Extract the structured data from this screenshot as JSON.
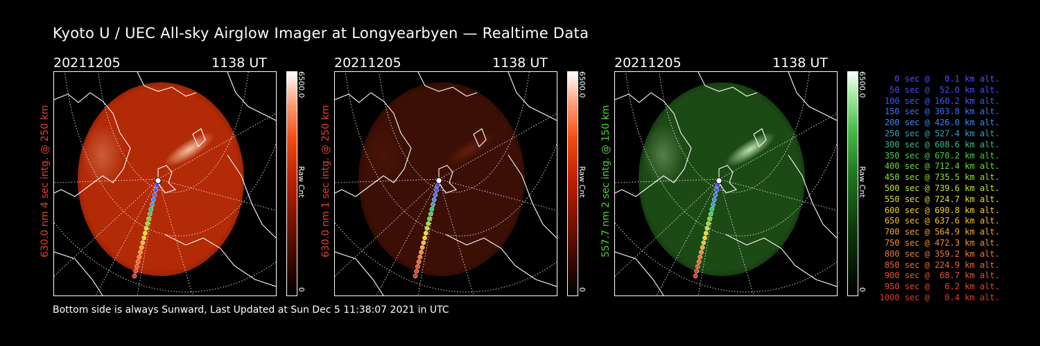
{
  "title": "Kyoto U / UEC All-sky Airglow Imager at Longyearbyen — Realtime Data",
  "footer": "Bottom side is always Sunward, Last Updated at Sun Dec  5 11:38:07 2021 in UTC",
  "colors": {
    "red_label": "#e8412a",
    "green_label": "#4cd43a"
  },
  "panels": [
    {
      "date": "20211205",
      "time": "1138 UT",
      "ylabel": "630.0 nm 4 sec intg. @ 250 km",
      "cbar_max": "6500.0",
      "cbar_min": "0",
      "cbar_unit": "Raw Cnt",
      "tone": "red-bright"
    },
    {
      "date": "20211205",
      "time": "1138 UT",
      "ylabel": "630.0 nm 1 sec intg. @ 250 km",
      "cbar_max": "6500.0",
      "cbar_min": "0",
      "cbar_unit": "Raw Cnt",
      "tone": "red-dim"
    },
    {
      "date": "20211205",
      "time": "1138 UT",
      "ylabel": "557.7 nm 2 sec intg. @ 150 km",
      "cbar_max": "6500.0",
      "cbar_min": "0",
      "cbar_unit": "Raw Cnt",
      "tone": "green"
    }
  ],
  "legend": [
    {
      "text": "0 sec @   0.1 km alt.",
      "color": "#5a4bff"
    },
    {
      "text": "50 sec @  52.0 km alt.",
      "color": "#4c48ff"
    },
    {
      "text": "100 sec @ 160.2 km alt.",
      "color": "#3c5cff"
    },
    {
      "text": "150 sec @ 303.8 km alt.",
      "color": "#3a72ff"
    },
    {
      "text": "200 sec @ 426.0 km alt.",
      "color": "#3c8cf0"
    },
    {
      "text": "250 sec @ 527.4 km alt.",
      "color": "#2fa8c4"
    },
    {
      "text": "300 sec @ 608.6 km alt.",
      "color": "#32c08a"
    },
    {
      "text": "350 sec @ 670.2 km alt.",
      "color": "#43d24a"
    },
    {
      "text": "400 sec @ 712.4 km alt.",
      "color": "#6adc2e"
    },
    {
      "text": "450 sec @ 735.5 km alt.",
      "color": "#93e22a"
    },
    {
      "text": "500 sec @ 739.6 km alt.",
      "color": "#bde628"
    },
    {
      "text": "550 sec @ 724.7 km alt.",
      "color": "#e0e02a"
    },
    {
      "text": "600 sec @ 690.8 km alt.",
      "color": "#f4d22c"
    },
    {
      "text": "650 sec @ 637.6 km alt.",
      "color": "#f8bd2e"
    },
    {
      "text": "700 sec @ 564.9 km alt.",
      "color": "#f8a62e"
    },
    {
      "text": "750 sec @ 472.3 km alt.",
      "color": "#f88f2e"
    },
    {
      "text": "800 sec @ 359.2 km alt.",
      "color": "#f47a2e"
    },
    {
      "text": "850 sec @ 224.9 km alt.",
      "color": "#f0662e"
    },
    {
      "text": "900 sec @  68.7 km alt.",
      "color": "#ec542e"
    },
    {
      "text": "950 sec @   6.2 km alt.",
      "color": "#e8452e"
    },
    {
      "text": "1000 sec @   0.4 km alt.",
      "color": "#e4382e"
    }
  ]
}
